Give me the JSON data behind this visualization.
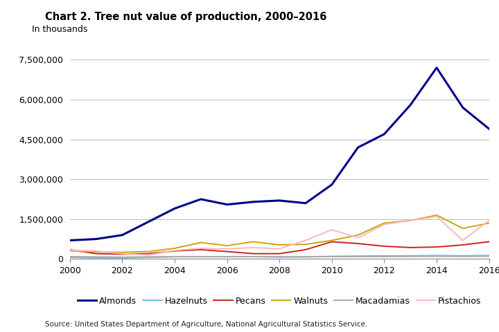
{
  "title": "Chart 2. Tree nut value of production, 2000–2016",
  "ylabel": "In thousands",
  "source": "Source: United States Department of Agriculture, National Agricultural Statistics Service.",
  "years": [
    2000,
    2001,
    2002,
    2003,
    2004,
    2005,
    2006,
    2007,
    2008,
    2009,
    2010,
    2011,
    2012,
    2013,
    2014,
    2015,
    2016
  ],
  "series": {
    "Almonds": {
      "color": "#00008B",
      "values": [
        700000,
        750000,
        900000,
        1400000,
        1900000,
        2250000,
        2050000,
        2150000,
        2200000,
        2100000,
        2800000,
        4200000,
        4700000,
        5800000,
        7200000,
        5700000,
        4900000
      ]
    },
    "Hazelnuts": {
      "color": "#6BBFEE",
      "values": [
        60000,
        40000,
        40000,
        60000,
        80000,
        80000,
        80000,
        90000,
        70000,
        80000,
        100000,
        110000,
        120000,
        120000,
        130000,
        120000,
        130000
      ]
    },
    "Pecans": {
      "color": "#CC2222",
      "values": [
        350000,
        200000,
        180000,
        200000,
        300000,
        350000,
        280000,
        200000,
        200000,
        350000,
        650000,
        580000,
        480000,
        430000,
        450000,
        530000,
        650000
      ]
    },
    "Walnuts": {
      "color": "#C8A800",
      "values": [
        300000,
        270000,
        250000,
        280000,
        400000,
        620000,
        500000,
        650000,
        530000,
        550000,
        700000,
        900000,
        1350000,
        1450000,
        1650000,
        1150000,
        1350000
      ]
    },
    "Macadamias": {
      "color": "#AAAAAA",
      "values": [
        90000,
        80000,
        70000,
        80000,
        90000,
        90000,
        90000,
        85000,
        85000,
        80000,
        90000,
        90000,
        90000,
        95000,
        100000,
        95000,
        100000
      ]
    },
    "Pistachios": {
      "color": "#FFB6C1",
      "values": [
        330000,
        300000,
        200000,
        150000,
        320000,
        400000,
        380000,
        430000,
        380000,
        700000,
        1100000,
        800000,
        1300000,
        1450000,
        1600000,
        700000,
        1450000
      ]
    }
  },
  "ylim": [
    0,
    8000000
  ],
  "yticks": [
    0,
    1500000,
    3000000,
    4500000,
    6000000,
    7500000
  ],
  "ytick_labels": [
    "0",
    "1,500,000",
    "3,000,000",
    "4,500,000",
    "6,000,000",
    "7,500,000"
  ],
  "xlim": [
    2000,
    2016
  ],
  "xticks": [
    2000,
    2002,
    2004,
    2006,
    2008,
    2010,
    2012,
    2014,
    2016
  ],
  "background_color": "#FFFFFF",
  "grid_color": "#BBBBBB",
  "title_fontsize": 10.5,
  "axis_fontsize": 9,
  "legend_fontsize": 9
}
